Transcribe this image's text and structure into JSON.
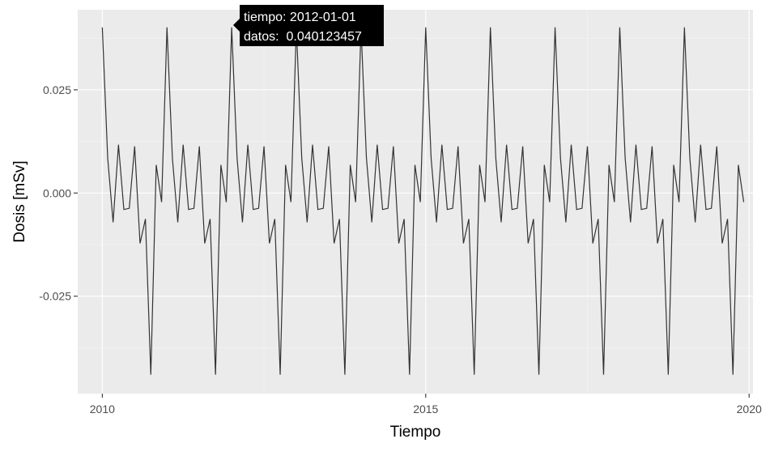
{
  "chart_data": {
    "type": "line",
    "title": "",
    "xlabel": "Tiempo",
    "ylabel": "Dosis [mSv]",
    "xlim": [
      2009.62,
      2020.06
    ],
    "ylim": [
      -0.0486,
      0.0444
    ],
    "x_ticks": [
      2010,
      2015,
      2020
    ],
    "x_tick_labels": [
      "2010",
      "2015",
      "2020"
    ],
    "y_ticks": [
      -0.025,
      0.0,
      0.025
    ],
    "y_tick_labels": [
      "-0.025",
      "0.000",
      "0.025"
    ],
    "grid": true,
    "legend": "none",
    "frequency": 12,
    "start": 2010.0,
    "seasonal_pattern": [
      0.040123457,
      0.0085,
      -0.0071,
      0.0117,
      -0.004,
      -0.0037,
      0.0113,
      -0.0122,
      -0.0063,
      -0.044,
      0.0068,
      -0.0022
    ],
    "n_cycles": 10,
    "series": [
      {
        "color": "#333333"
      }
    ],
    "tooltip": {
      "line1": "tiempo: 2012-01-01",
      "line2": "datos:  0.040123457"
    }
  },
  "colors": {
    "panel": "#ebebeb",
    "grid_major": "#ffffff",
    "grid_minor": "#f5f5f5",
    "line": "#333333",
    "tooltip_bg": "#000000"
  }
}
